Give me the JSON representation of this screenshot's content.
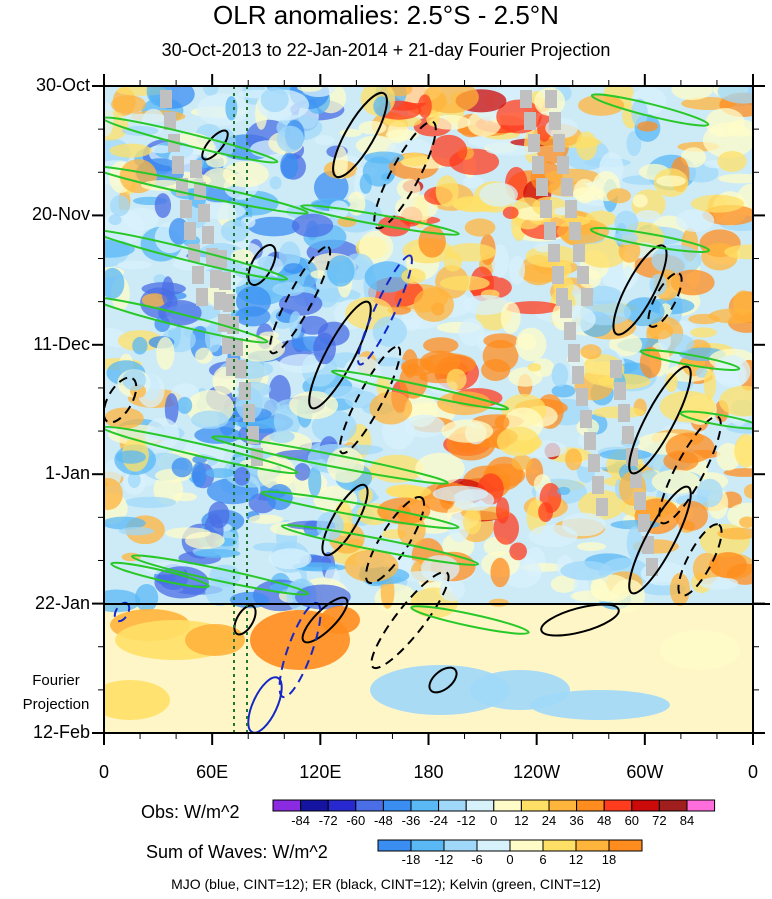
{
  "title": "OLR anomalies: 2.5°S - 2.5°N",
  "subtitle": "30-Oct-2013 to 22-Jan-2014 + 21-day Fourier Projection",
  "footer": "MJO (blue, CINT=12); ER (black, CINT=12); Kelvin (green, CINT=12)",
  "projection_label_1": "Fourier",
  "projection_label_2": "Projection",
  "chart_data": {
    "type": "heatmap",
    "x_axis": {
      "ticks": [
        "0",
        "60E",
        "120E",
        "180",
        "120W",
        "60W",
        "0"
      ],
      "range_deg_east": [
        0,
        360
      ]
    },
    "y_axis": {
      "ticks": [
        "30-Oct",
        "20-Nov",
        "11-Dec",
        "1-Jan",
        "22-Jan",
        "12-Feb"
      ],
      "observed_end": "22-Jan",
      "projection_end": "12-Feb"
    },
    "obs_colorbar": {
      "label": "Obs: W/m^2",
      "levels": [
        -84,
        -72,
        -60,
        -48,
        -36,
        -24,
        -12,
        0,
        12,
        24,
        36,
        48,
        60,
        72,
        84
      ],
      "colors": [
        "#8a2be2",
        "#1414a0",
        "#2828d0",
        "#4a6ee6",
        "#3a8ef2",
        "#5ab8f5",
        "#a0d8fa",
        "#d8f2fc",
        "#fffcc8",
        "#ffe066",
        "#ffb43c",
        "#ff8c1e",
        "#ff3c1e",
        "#cc0a0a",
        "#a01e1e",
        "#ff6edc"
      ]
    },
    "waves_colorbar": {
      "label": "Sum of Waves: W/m^2",
      "levels": [
        -18,
        -12,
        -6,
        0,
        6,
        12,
        18
      ],
      "colors": [
        "#3a8ef2",
        "#5ab8f5",
        "#a0d8fa",
        "#d8f2fc",
        "#fffcc8",
        "#ffe066",
        "#ffb43c",
        "#ff8c1e"
      ]
    },
    "contours": [
      {
        "name": "MJO",
        "color": "blue",
        "cint": 12
      },
      {
        "name": "ER",
        "color": "black",
        "cint": 12
      },
      {
        "name": "Kelvin",
        "color": "green",
        "cint": 12
      }
    ],
    "reference_longitudes": [
      "~72E",
      "~80E"
    ]
  }
}
